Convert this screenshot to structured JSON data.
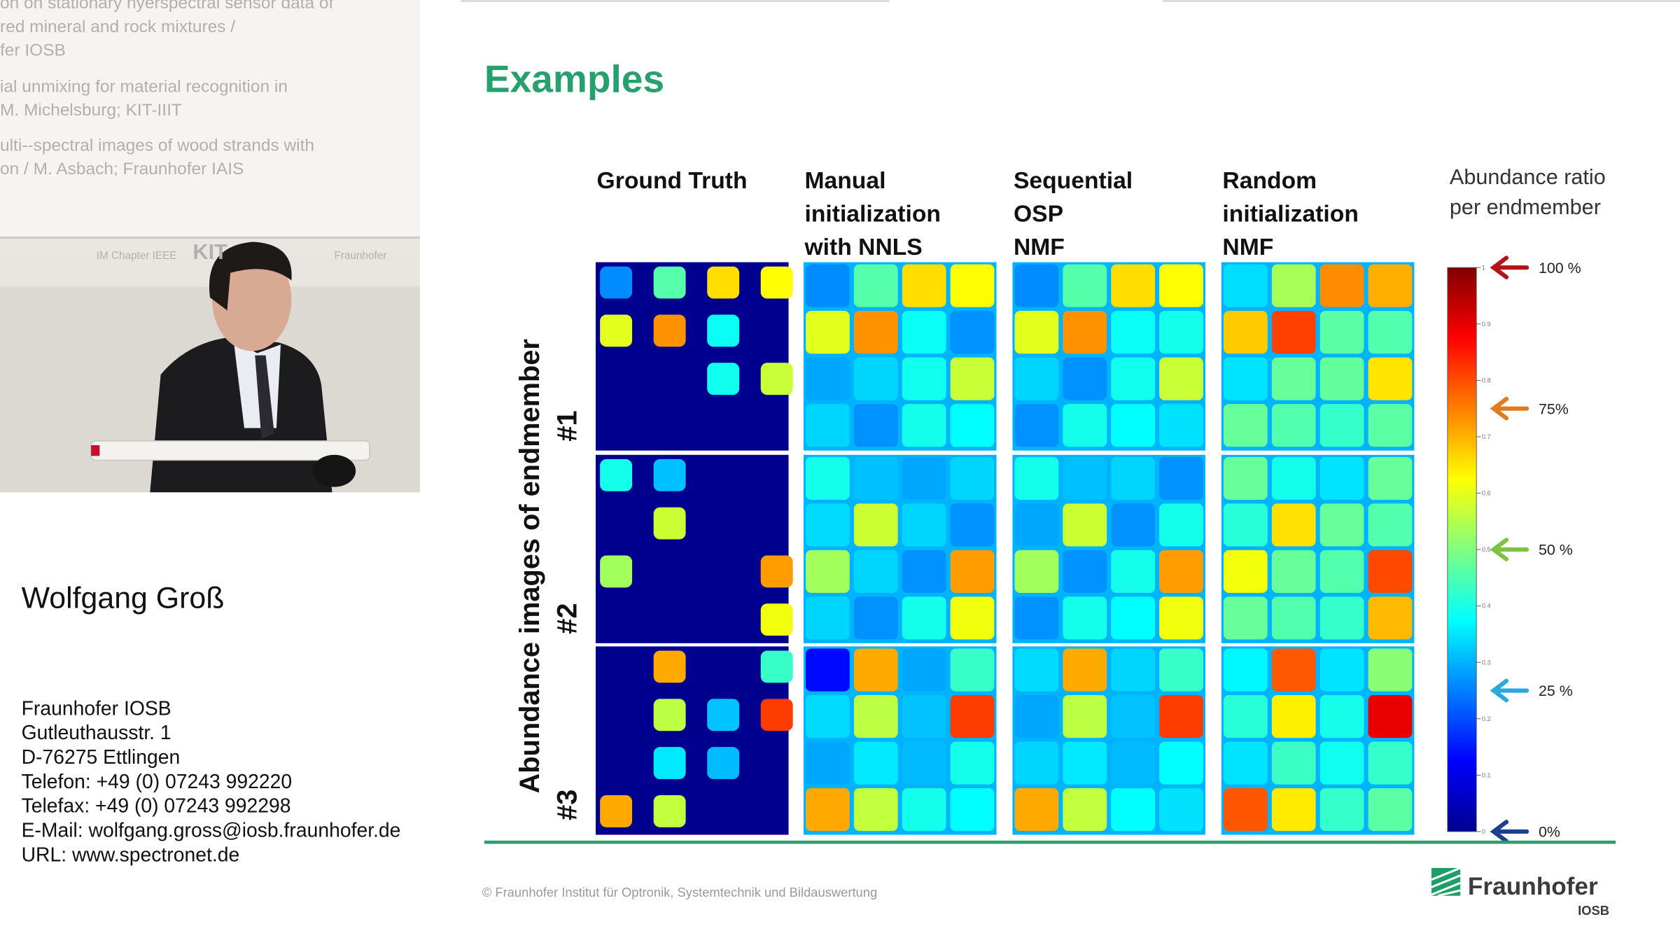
{
  "video": {
    "slide_lines": [
      "on on stationary hyerspectral sensor data of",
      "red mineral and rock mixtures /",
      "fer IOSB",
      "ial unmixing for material recognition in",
      "M. Michelsburg; KIT-IIIT",
      "ulti--spectral images of wood strands with",
      "on / M. Asbach; Fraunhofer IAIS"
    ],
    "logos": [
      "IM Chapter IEEE",
      "KIT",
      "Fraunhofer"
    ]
  },
  "speaker": {
    "name": "Wolfgang Groß",
    "contact": [
      "Fraunhofer IOSB",
      "Gutleuthausstr. 1",
      "D-76275 Ettlingen",
      "Telefon: +49 (0) 07243 992220",
      "Telefax: +49 (0) 07243 992298",
      "E-Mail:  wolfgang.gross@iosb.fraunhofer.de",
      "URL: www.spectronet.de"
    ]
  },
  "slide": {
    "title": "Examples",
    "columns": [
      [
        "Ground Truth"
      ],
      [
        "Manual",
        "initialization",
        "with NNLS"
      ],
      [
        "Sequential",
        "OSP",
        "NMF"
      ],
      [
        "Random",
        "initialization",
        "NMF"
      ]
    ],
    "row_axis_label": "Abundance images of endmember",
    "rows": [
      "#1",
      "#2",
      "#3"
    ],
    "colorbar": {
      "title": [
        "Abundance ratio",
        "per endmember"
      ],
      "ticks": [
        0,
        0.1,
        0.2,
        0.3,
        0.4,
        0.5,
        0.6,
        0.7,
        0.8,
        0.9,
        1
      ],
      "markers": [
        {
          "value": 1,
          "label": "100 %",
          "color": "#b5121b"
        },
        {
          "value": 0.75,
          "label": "75%",
          "color": "#e07b21"
        },
        {
          "value": 0.5,
          "label": "50 %",
          "color": "#7dc242"
        },
        {
          "value": 0.25,
          "label": "25 %",
          "color": "#2aa9e0"
        },
        {
          "value": 0,
          "label": "0%",
          "color": "#1c3f8f"
        }
      ]
    },
    "footer": "© Fraunhofer Institut für Optronik, Systemtechnik und Bildauswertung",
    "logo": {
      "name": "Fraunhofer",
      "unit": "IOSB"
    }
  }
}
